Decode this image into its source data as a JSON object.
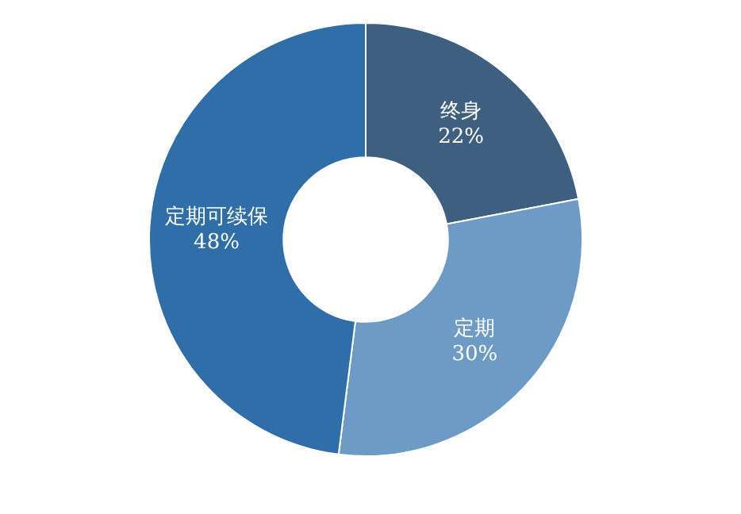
{
  "chart_data": {
    "type": "donut",
    "categories": [
      "终身",
      "定期",
      "定期可续保"
    ],
    "values": [
      22,
      30,
      48
    ],
    "colors": [
      "#3e5f80",
      "#6e9bc5",
      "#2f6ea8"
    ],
    "value_labels": [
      "22%",
      "30%",
      "48%"
    ]
  }
}
